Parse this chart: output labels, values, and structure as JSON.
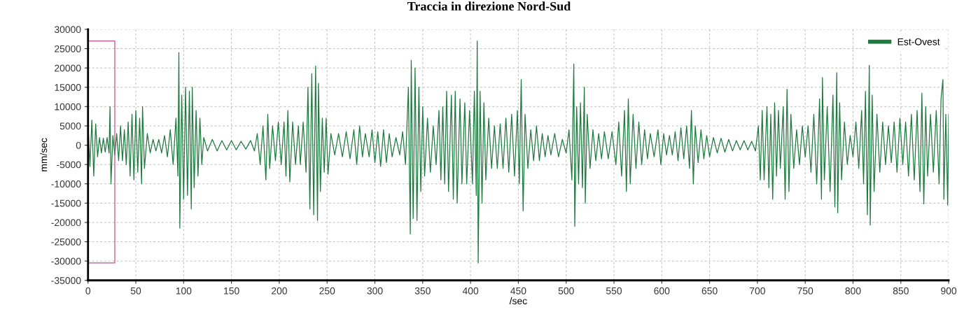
{
  "chart_data": {
    "type": "line",
    "title": "Traccia in direzione Nord-Sud",
    "xlabel": "/sec",
    "ylabel": "mm/sec",
    "xlim": [
      0,
      900
    ],
    "xticks": [
      0,
      50,
      100,
      150,
      200,
      250,
      300,
      350,
      400,
      450,
      500,
      550,
      600,
      650,
      700,
      750,
      800,
      850,
      900
    ],
    "ylim": [
      -35000,
      30000
    ],
    "yticks": [
      -35000,
      -30000,
      -25000,
      -20000,
      -15000,
      -10000,
      -5000,
      0,
      5000,
      10000,
      15000,
      20000,
      25000,
      30000
    ],
    "grid": true,
    "legend": "top right",
    "series": [
      {
        "name": "Est-Ovest",
        "color": "#1e7a3e",
        "x": [
          0,
          2,
          4,
          6,
          8,
          10,
          12,
          14,
          16,
          18,
          20,
          22,
          23,
          24,
          26,
          28,
          30,
          32,
          34,
          36,
          38,
          40,
          42,
          44,
          46,
          48,
          50,
          52,
          54,
          56,
          57,
          59,
          62,
          65,
          68,
          71,
          74,
          77,
          80,
          83,
          86,
          89,
          92,
          94,
          95,
          96,
          98,
          100,
          102,
          104,
          106,
          108,
          109,
          111,
          113,
          115,
          117,
          119,
          121,
          125,
          130,
          135,
          140,
          145,
          150,
          155,
          160,
          165,
          170,
          174,
          177,
          180,
          183,
          186,
          188,
          190,
          193,
          196,
          199,
          202,
          205,
          207,
          209,
          211,
          214,
          217,
          220,
          222,
          225,
          228,
          230,
          232,
          234,
          236,
          238,
          240,
          241,
          243,
          245,
          247,
          249,
          251,
          254,
          258,
          262,
          266,
          270,
          274,
          278,
          281,
          284,
          287,
          290,
          294,
          297,
          300,
          303,
          306,
          309,
          312,
          315,
          318,
          322,
          326,
          329,
          332,
          335,
          337,
          338,
          340,
          342,
          344,
          346,
          348,
          350,
          352,
          355,
          358,
          361,
          364,
          367,
          369,
          371,
          373,
          375,
          377,
          380,
          382,
          384,
          386,
          389,
          391,
          394,
          396,
          399,
          402,
          404,
          406,
          407,
          408,
          410,
          412,
          414,
          416,
          419,
          422,
          425,
          428,
          431,
          434,
          437,
          440,
          443,
          446,
          449,
          451,
          453,
          455,
          457,
          460,
          463,
          466,
          469,
          472,
          475,
          478,
          481,
          484,
          488,
          492,
          496,
          500,
          503,
          506,
          508,
          509,
          511,
          513,
          515,
          517,
          519,
          520,
          522,
          525,
          528,
          531,
          534,
          537,
          540,
          544,
          548,
          552,
          555,
          558,
          561,
          563,
          565,
          567,
          570,
          573,
          576,
          579,
          582,
          585,
          588,
          592,
          596,
          599,
          602,
          605,
          608,
          611,
          614,
          617,
          620,
          623,
          626,
          629,
          631,
          633,
          635,
          638,
          641,
          644,
          647,
          650,
          654,
          658,
          662,
          666,
          670,
          674,
          678,
          682,
          686,
          690,
          694,
          698,
          701,
          703,
          705,
          707,
          710,
          712,
          714,
          716,
          718,
          720,
          722,
          724,
          727,
          729,
          731,
          733,
          735,
          738,
          741,
          744,
          747,
          750,
          753,
          756,
          759,
          762,
          765,
          767,
          768,
          770,
          773,
          776,
          779,
          781,
          783,
          784,
          786,
          788,
          791,
          794,
          797,
          800,
          803,
          806,
          809,
          811,
          813,
          815,
          817,
          818,
          820,
          822,
          825,
          828,
          831,
          834,
          837,
          840,
          843,
          846,
          849,
          852,
          855,
          858,
          861,
          864,
          867,
          870,
          872,
          874,
          876,
          878,
          881,
          884,
          887,
          890,
          892,
          894,
          895,
          897,
          899,
          900
        ],
        "values": [
          6000,
          -5500,
          6500,
          -8000,
          5500,
          -3000,
          2000,
          -2000,
          1800,
          -1800,
          2000,
          -2000,
          10000,
          -10000,
          2500,
          -2500,
          3000,
          -4000,
          5000,
          -4000,
          4000,
          -5000,
          6000,
          -8000,
          8000,
          -9000,
          9000,
          -7000,
          7000,
          -10000,
          10000,
          -6000,
          3000,
          -2000,
          1500,
          -1500,
          1500,
          -2000,
          2500,
          -3000,
          4000,
          -5000,
          7000,
          -8000,
          24000,
          -21500,
          13000,
          -14000,
          15000,
          -13000,
          14000,
          -16500,
          15000,
          -11000,
          9000,
          -8000,
          7000,
          -5000,
          2000,
          -1500,
          1500,
          -1500,
          1200,
          -1200,
          1200,
          -1200,
          1000,
          -1000,
          1200,
          -1500,
          3000,
          -5000,
          5000,
          -9000,
          8000,
          -6000,
          5000,
          -4000,
          6000,
          -5000,
          6000,
          -8000,
          9000,
          -9500,
          6000,
          -5000,
          5000,
          -5000,
          6000,
          -7000,
          15000,
          -16500,
          18500,
          -18000,
          20500,
          -19500,
          16000,
          -12000,
          7000,
          -7000,
          7000,
          -7500,
          3000,
          -2500,
          3000,
          -3000,
          3500,
          -3500,
          4000,
          -5000,
          5000,
          -3000,
          3000,
          -3000,
          4000,
          -4500,
          3500,
          -5500,
          4000,
          -4500,
          3000,
          -3000,
          2000,
          -2500,
          3500,
          -5000,
          15000,
          -23000,
          22000,
          -19000,
          20000,
          -19500,
          15000,
          -12000,
          10000,
          -8000,
          7000,
          -7000,
          5000,
          -5000,
          9000,
          -9000,
          10000,
          -10000,
          14000,
          -12000,
          13000,
          -14000,
          14000,
          -15000,
          12000,
          -10000,
          11000,
          -10000,
          9000,
          -10000,
          14000,
          -13000,
          27000,
          -30500,
          14000,
          -15000,
          11000,
          -9000,
          7000,
          -6000,
          5000,
          -6000,
          5500,
          -6000,
          7000,
          -7000,
          8000,
          -8000,
          9000,
          -10000,
          17000,
          -17000,
          8000,
          -6000,
          4000,
          -4000,
          5000,
          -4000,
          3000,
          -3000,
          2500,
          -2500,
          3000,
          -3000,
          1500,
          -2000,
          4000,
          -9000,
          21000,
          -21000,
          10000,
          -10000,
          11000,
          -11000,
          15000,
          -15000,
          8000,
          -6000,
          4000,
          -4000,
          3000,
          -3500,
          3500,
          -3500,
          3500,
          -5000,
          6000,
          -8000,
          9000,
          -12000,
          12000,
          -10000,
          8000,
          -6000,
          6000,
          -5000,
          4000,
          -3500,
          3000,
          -3000,
          4000,
          -5000,
          3000,
          -2500,
          2500,
          -2500,
          3500,
          -4000,
          4500,
          -3500,
          5000,
          -6000,
          9000,
          -10000,
          5000,
          -4500,
          4000,
          -3500,
          2500,
          -3000,
          2000,
          -2000,
          1800,
          -1800,
          1500,
          -1500,
          1200,
          -1200,
          1200,
          -1200,
          1000,
          -1500,
          5000,
          -9000,
          9000,
          -9000,
          10000,
          -11000,
          8000,
          -14000,
          11000,
          -8000,
          9000,
          -6000,
          10000,
          -14000,
          14500,
          -12000,
          8000,
          -6000,
          4000,
          -5000,
          5000,
          -3000,
          5000,
          -7000,
          8000,
          -10000,
          12000,
          -14000,
          17500,
          -9000,
          10000,
          -12000,
          13000,
          -16000,
          18800,
          -17500,
          11000,
          -9000,
          6000,
          -5000,
          2500,
          -3000,
          6000,
          -6000,
          9000,
          -10000,
          14000,
          -18000,
          20700,
          -20700,
          13000,
          -12000,
          8000,
          -7000,
          6000,
          -5000,
          5000,
          -4500,
          6000,
          -7000,
          7000,
          -5000,
          6000,
          -8000,
          8000,
          -9000,
          9000,
          -12000,
          13500,
          -15200,
          10000,
          -8000,
          8000,
          -7000,
          9000,
          -10000,
          12000,
          17000,
          -14000,
          8000,
          -15500,
          8000
        ]
      },
      {
        "type": "line",
        "color": "#c0508a",
        "x": [
          0,
          28,
          28,
          0
        ],
        "values": [
          27000,
          27000,
          -30500,
          -30500
        ]
      }
    ]
  }
}
